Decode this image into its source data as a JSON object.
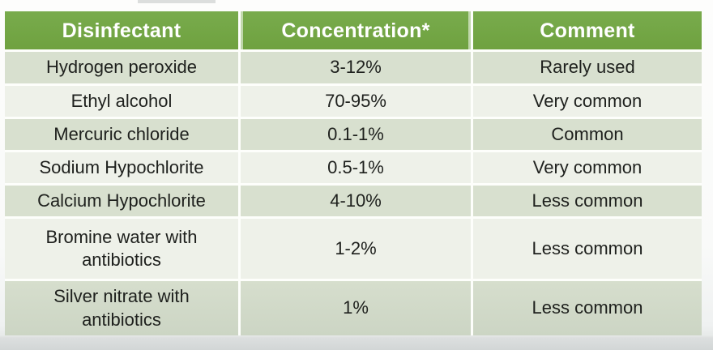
{
  "slide": {
    "type": "table-slide",
    "accent_green": "#73a645",
    "band_dark": "#d8e0cf",
    "band_light": "#eef1e9",
    "gridline_color": "#fdfefb",
    "header_text_color": "#ffffff",
    "body_text_color": "#1e201d",
    "letterbox_color": "#d2d6d6"
  },
  "table": {
    "headers": [
      "Disinfectant",
      "Concentration*",
      "Comment"
    ],
    "rows": [
      {
        "cells": [
          "Hydrogen peroxide",
          "3-12%",
          "Rarely used"
        ]
      },
      {
        "cells": [
          "Ethyl alcohol",
          "70-95%",
          "Very common"
        ]
      },
      {
        "cells": [
          "Mercuric chloride",
          "0.1-1%",
          "Common"
        ]
      },
      {
        "cells": [
          "Sodium Hypochlorite",
          "0.5-1%",
          "Very common"
        ]
      },
      {
        "cells": [
          "Calcium Hypochlorite",
          "4-10%",
          "Less common"
        ]
      },
      {
        "cells": [
          "Bromine water with\nantibiotics",
          "1-2%",
          "Less common"
        ]
      },
      {
        "cells": [
          "Silver nitrate with\nantibiotics",
          "1%",
          "Less common"
        ]
      }
    ]
  },
  "chart_data": {
    "type": "table",
    "title": "",
    "columns": [
      "Disinfectant",
      "Concentration*",
      "Comment"
    ],
    "rows": [
      [
        "Hydrogen peroxide",
        "3-12%",
        "Rarely used"
      ],
      [
        "Ethyl alcohol",
        "70-95%",
        "Very common"
      ],
      [
        "Mercuric chloride",
        "0.1-1%",
        "Common"
      ],
      [
        "Sodium Hypochlorite",
        "0.5-1%",
        "Very common"
      ],
      [
        "Calcium Hypochlorite",
        "4-10%",
        "Less common"
      ],
      [
        "Bromine water with antibiotics",
        "1-2%",
        "Less common"
      ],
      [
        "Silver nitrate with antibiotics",
        "1%",
        "Less common"
      ]
    ]
  }
}
